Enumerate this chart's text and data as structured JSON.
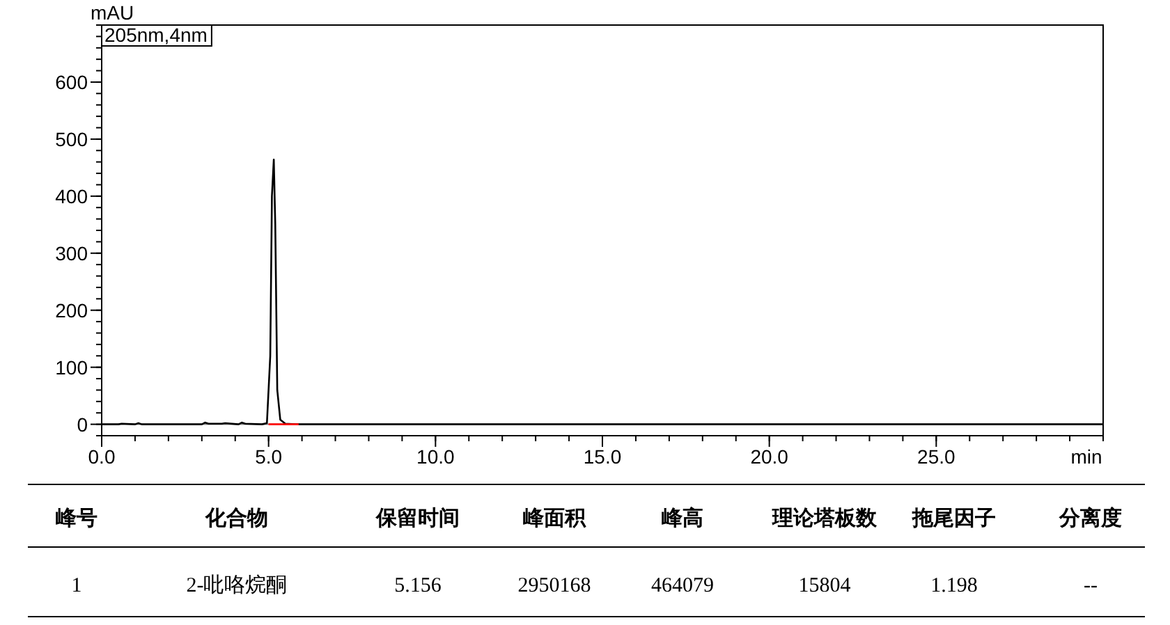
{
  "chart_data": {
    "type": "line",
    "xlabel": "min",
    "ylabel": "mAU",
    "xlim": [
      0,
      30
    ],
    "ylim": [
      -20,
      700
    ],
    "xticks": [
      {
        "value": 0,
        "label": "0.0"
      },
      {
        "value": 5,
        "label": "5.0"
      },
      {
        "value": 10,
        "label": "10.0"
      },
      {
        "value": 15,
        "label": "15.0"
      },
      {
        "value": 20,
        "label": "20.0"
      },
      {
        "value": 25,
        "label": "25.0"
      }
    ],
    "yticks": [
      0,
      100,
      200,
      300,
      400,
      500,
      600
    ],
    "series": [
      {
        "color": "#000000",
        "x": [
          0,
          0.5,
          0.6,
          1.0,
          1.1,
          1.2,
          3.0,
          3.1,
          3.2,
          3.6,
          3.7,
          4.1,
          4.2,
          4.3,
          4.8,
          4.95,
          5.05,
          5.1,
          5.156,
          5.2,
          5.26,
          5.35,
          5.5,
          5.8,
          30
        ],
        "values": [
          0,
          0,
          1,
          0,
          2,
          0,
          0,
          3,
          1,
          1,
          2,
          0,
          3,
          1,
          0,
          2,
          120,
          400,
          464,
          350,
          60,
          8,
          1,
          0,
          0
        ]
      },
      {
        "color": "#ff0000",
        "x": [
          5.0,
          5.9
        ],
        "values": [
          0,
          0
        ]
      }
    ],
    "ref_lines": [
      {
        "axis": "y",
        "value": 0,
        "color": "#888888"
      }
    ],
    "annotations": [
      "205nm,4nm",
      "峰号",
      "化合物",
      "保留时间",
      "峰面积",
      "峰高",
      "理论塔板数",
      "拖尾因子",
      "分离度",
      "1",
      "2-吡咯烷酮",
      "5.156",
      "2950168",
      "464079",
      "15804",
      "1.198",
      "--"
    ]
  }
}
